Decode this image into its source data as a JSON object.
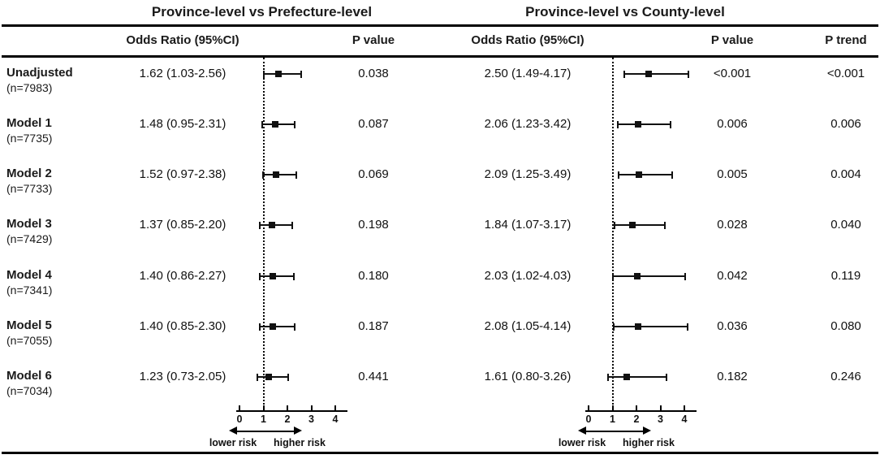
{
  "group_headers": {
    "prefecture": "Province-level vs Prefecture-level",
    "county": "Province-level vs County-level"
  },
  "column_headers": {
    "or_left": "Odds Ratio (95%CI)",
    "p_left": "P value",
    "or_right": "Odds Ratio (95%CI)",
    "p_right": "P value",
    "p_trend": "P trend"
  },
  "rows": [
    {
      "label": "Unadjusted",
      "n": "(n=7983)",
      "prefecture": {
        "or_ci": "1.62 (1.03-2.56)",
        "p": "0.038"
      },
      "county": {
        "or_ci": "2.50 (1.49-4.17)",
        "p": "<0.001"
      },
      "p_trend": "<0.001"
    },
    {
      "label": "Model 1",
      "n": "(n=7735)",
      "prefecture": {
        "or_ci": "1.48 (0.95-2.31)",
        "p": "0.087"
      },
      "county": {
        "or_ci": "2.06 (1.23-3.42)",
        "p": "0.006"
      },
      "p_trend": "0.006"
    },
    {
      "label": "Model 2",
      "n": "(n=7733)",
      "prefecture": {
        "or_ci": "1.52 (0.97-2.38)",
        "p": "0.069"
      },
      "county": {
        "or_ci": "2.09 (1.25-3.49)",
        "p": "0.005"
      },
      "p_trend": "0.004"
    },
    {
      "label": "Model 3",
      "n": "(n=7429)",
      "prefecture": {
        "or_ci": "1.37 (0.85-2.20)",
        "p": "0.198"
      },
      "county": {
        "or_ci": "1.84 (1.07-3.17)",
        "p": "0.028"
      },
      "p_trend": "0.040"
    },
    {
      "label": "Model 4",
      "n": "(n=7341)",
      "prefecture": {
        "or_ci": "1.40 (0.86-2.27)",
        "p": "0.180"
      },
      "county": {
        "or_ci": "2.03 (1.02-4.03)",
        "p": "0.042"
      },
      "p_trend": "0.119"
    },
    {
      "label": "Model 5",
      "n": "(n=7055)",
      "prefecture": {
        "or_ci": "1.40 (0.85-2.30)",
        "p": "0.187"
      },
      "county": {
        "or_ci": "2.08 (1.05-4.14)",
        "p": "0.036"
      },
      "p_trend": "0.080"
    },
    {
      "label": "Model 6",
      "n": "(n=7034)",
      "prefecture": {
        "or_ci": "1.23 (0.73-2.05)",
        "p": "0.441"
      },
      "county": {
        "or_ci": "1.61 (0.80-3.26)",
        "p": "0.182"
      },
      "p_trend": "0.246"
    }
  ],
  "axis": {
    "ticks": [
      "0",
      "1",
      "2",
      "3",
      "4"
    ],
    "lower_label": "lower risk",
    "higher_label": "higher risk"
  },
  "colors": {
    "ink": "#111111",
    "line": "#000000",
    "background": "#ffffff"
  },
  "chart_data": [
    {
      "type": "scatter",
      "subtype": "forest-plot",
      "title": "Province-level vs Prefecture-level",
      "categories": [
        "Unadjusted (n=7983)",
        "Model 1 (n=7735)",
        "Model 2 (n=7733)",
        "Model 3 (n=7429)",
        "Model 4 (n=7341)",
        "Model 5 (n=7055)",
        "Model 6 (n=7034)"
      ],
      "or": [
        1.62,
        1.48,
        1.52,
        1.37,
        1.4,
        1.4,
        1.23
      ],
      "ci_low": [
        1.03,
        0.95,
        0.97,
        0.85,
        0.86,
        0.85,
        0.73
      ],
      "ci_high": [
        2.56,
        2.31,
        2.38,
        2.2,
        2.27,
        2.3,
        2.05
      ],
      "p_values": [
        "0.038",
        "0.087",
        "0.069",
        "0.198",
        "0.180",
        "0.187",
        "0.441"
      ],
      "x_ticks": [
        0,
        1,
        2,
        3,
        4
      ],
      "xlim": [
        0,
        4.5
      ],
      "reference_line": 1,
      "grid": false,
      "annotations": [
        "lower risk",
        "higher risk"
      ]
    },
    {
      "type": "scatter",
      "subtype": "forest-plot",
      "title": "Province-level vs County-level",
      "categories": [
        "Unadjusted (n=7983)",
        "Model 1 (n=7735)",
        "Model 2 (n=7733)",
        "Model 3 (n=7429)",
        "Model 4 (n=7341)",
        "Model 5 (n=7055)",
        "Model 6 (n=7034)"
      ],
      "or": [
        2.5,
        2.06,
        2.09,
        1.84,
        2.03,
        2.08,
        1.61
      ],
      "ci_low": [
        1.49,
        1.23,
        1.25,
        1.07,
        1.02,
        1.05,
        0.8
      ],
      "ci_high": [
        4.17,
        3.42,
        3.49,
        3.17,
        4.03,
        4.14,
        3.26
      ],
      "p_values": [
        "<0.001",
        "0.006",
        "0.005",
        "0.028",
        "0.042",
        "0.036",
        "0.182"
      ],
      "p_trend": [
        "<0.001",
        "0.006",
        "0.004",
        "0.040",
        "0.119",
        "0.080",
        "0.246"
      ],
      "x_ticks": [
        0,
        1,
        2,
        3,
        4
      ],
      "xlim": [
        0,
        4.5
      ],
      "reference_line": 1,
      "grid": false,
      "annotations": [
        "lower risk",
        "higher risk"
      ]
    }
  ]
}
